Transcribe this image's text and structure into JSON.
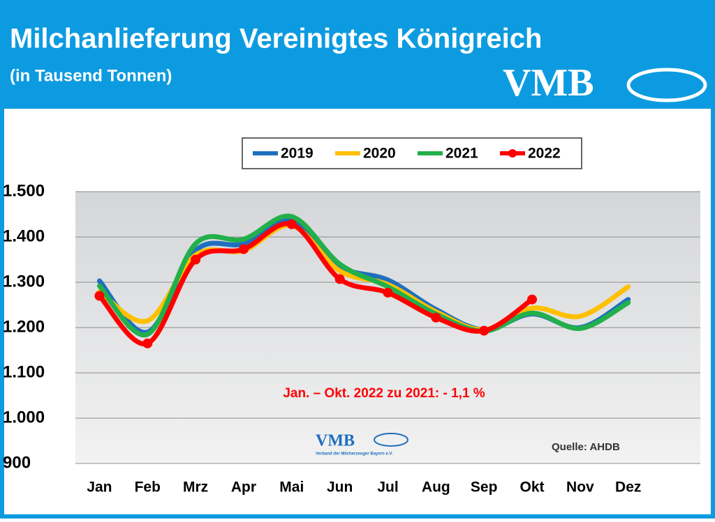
{
  "chart_data": {
    "type": "line",
    "title": "Milchanlieferung Vereinigtes Königreich",
    "subtitle": "(in Tausend Tonnen)",
    "logo": "VMB",
    "watermark": "VMB",
    "watermark_subtext": "Verband der Milcherzeuger Bayern e.V.",
    "annotation": "Jan. – Okt. 2022 zu 2021: - 1,1 %",
    "source": "Quelle: AHDB",
    "categories": [
      "Jan",
      "Feb",
      "Mrz",
      "Apr",
      "Mai",
      "Jun",
      "Jul",
      "Aug",
      "Sep",
      "Okt",
      "Nov",
      "Dez"
    ],
    "series": [
      {
        "name": "2019",
        "color": "#1f6fbf",
        "values": [
          1303,
          1190,
          1370,
          1385,
          1435,
          1335,
          1305,
          1240,
          1195,
          1230,
          1200,
          1262
        ]
      },
      {
        "name": "2020",
        "color": "#ffc000",
        "values": [
          1280,
          1215,
          1360,
          1370,
          1425,
          1325,
          1295,
          1235,
          1195,
          1243,
          1225,
          1290
        ]
      },
      {
        "name": "2021",
        "color": "#22b04b",
        "values": [
          1292,
          1185,
          1385,
          1395,
          1445,
          1340,
          1290,
          1230,
          1192,
          1232,
          1198,
          1255
        ]
      },
      {
        "name": "2022",
        "color": "#ff0000",
        "values": [
          1270,
          1165,
          1350,
          1373,
          1428,
          1307,
          1277,
          1222,
          1193,
          1262,
          null,
          null
        ],
        "markers": true
      }
    ],
    "ylim": [
      900,
      1500
    ],
    "yticks": [
      900,
      {
        "value": 1000,
        "label": "1.000"
      },
      {
        "value": 1100,
        "label": "1.100"
      },
      {
        "value": 1200,
        "label": "1.200"
      },
      {
        "value": 1300,
        "label": "1.300"
      },
      {
        "value": 1400,
        "label": "1.400"
      },
      {
        "value": 1500,
        "label": "1.500"
      }
    ],
    "grid": true,
    "legend": "top"
  }
}
